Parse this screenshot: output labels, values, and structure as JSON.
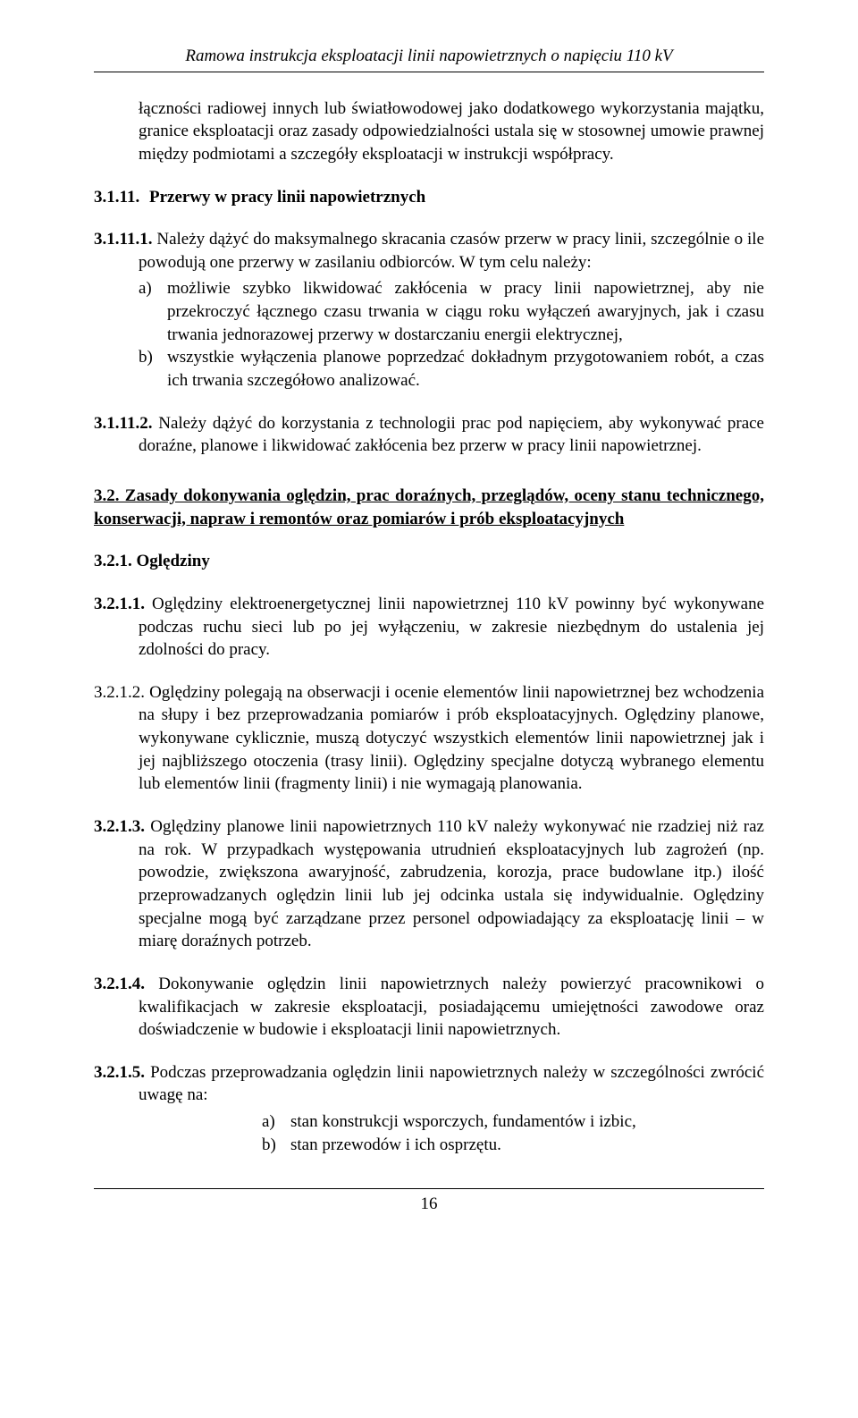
{
  "header": {
    "title": "Ramowa instrukcja eksploatacji linii napowietrznych o napięciu 110 kV"
  },
  "intro_para": "łączności radiowej innych lub światłowodowej jako dodatkowego wykorzystania majątku, granice eksploatacji oraz zasady odpowiedzialności ustala się w stosownej umowie prawnej między podmiotami a szczegóły eksploatacji w instrukcji współpracy.",
  "s3_1_11": {
    "num": "3.1.11.",
    "title": "Przerwy w pracy linii napowietrznych"
  },
  "s3_1_11_1": {
    "num": "3.1.11.1.",
    "lead": " Należy dążyć do maksymalnego skracania czasów przerw w pracy linii, szczególnie o ile powodują one przerwy w zasilaniu odbiorców. W tym celu należy:",
    "a_marker": "a)",
    "a_text": "możliwie szybko likwidować zakłócenia w pracy linii napowietrznej, aby nie przekroczyć łącznego czasu trwania w ciągu roku wyłączeń awaryjnych, jak i czasu trwania jednorazowej przerwy w dostarczaniu energii elektrycznej,",
    "b_marker": "b)",
    "b_text": "wszystkie wyłączenia planowe poprzedzać dokładnym przygotowaniem robót, a czas ich trwania szczegółowo analizować."
  },
  "s3_1_11_2": {
    "num": "3.1.11.2.",
    "text": " Należy dążyć do korzystania z technologii prac pod napięciem, aby wykonywać prace doraźne, planowe i likwidować zakłócenia bez przerw w pracy linii napowietrznej."
  },
  "s3_2": {
    "heading": "3.2. Zasady dokonywania oględzin, prac doraźnych, przeglądów, oceny stanu technicznego, konserwacji, napraw i remontów oraz pomiarów i prób eksploatacyjnych"
  },
  "s3_2_1": {
    "heading": "3.2.1.  Oględziny"
  },
  "s3_2_1_1": {
    "num": "3.2.1.1.",
    "text": " Oględziny elektroenergetycznej linii napowietrznej 110 kV powinny być wykonywane podczas ruchu sieci lub po jej wyłączeniu, w zakresie  niezbędnym do ustalenia jej zdolności do pracy."
  },
  "s3_2_1_2": {
    "num": "3.2.1.2.",
    "text": " Oględziny polegają na obserwacji i ocenie elementów linii napowietrznej bez wchodzenia na słupy i bez przeprowadzania pomiarów i prób eksploatacyjnych. Oględziny planowe, wykonywane cyklicznie, muszą dotyczyć wszystkich elementów linii napowietrznej jak i jej najbliższego otoczenia (trasy linii). Oględziny specjalne dotyczą wybranego elementu lub elementów linii (fragmenty linii) i nie wymagają planowania."
  },
  "s3_2_1_3": {
    "num": "3.2.1.3.",
    "text": " Oględziny planowe linii napowietrznych 110 kV należy wykonywać nie rzadziej niż raz na rok. W przypadkach występowania utrudnień eksploatacyjnych lub zagrożeń (np. powodzie, zwiększona awaryjność, zabrudzenia, korozja, prace budowlane itp.) ilość przeprowadzanych oględzin linii lub jej odcinka ustala się indywidualnie. Oględziny specjalne mogą być zarządzane przez personel odpowiadający za eksploatację linii – w miarę doraźnych potrzeb."
  },
  "s3_2_1_4": {
    "num": "3.2.1.4.",
    "text": " Dokonywanie oględzin linii napowietrznych należy powierzyć  pracownikowi o kwalifikacjach w zakresie eksploatacji, posiadającemu umiejętności zawodowe oraz doświadczenie w budowie i eksploatacji linii napowietrznych."
  },
  "s3_2_1_5": {
    "num": "3.2.1.5.",
    "lead": " Podczas przeprowadzania oględzin linii napowietrznych należy w szczególności zwrócić uwagę na:",
    "a_marker": "a)",
    "a_text": "stan konstrukcji wsporczych, fundamentów i izbic,",
    "b_marker": "b)",
    "b_text": "stan przewodów i ich osprzętu."
  },
  "page_number": "16"
}
